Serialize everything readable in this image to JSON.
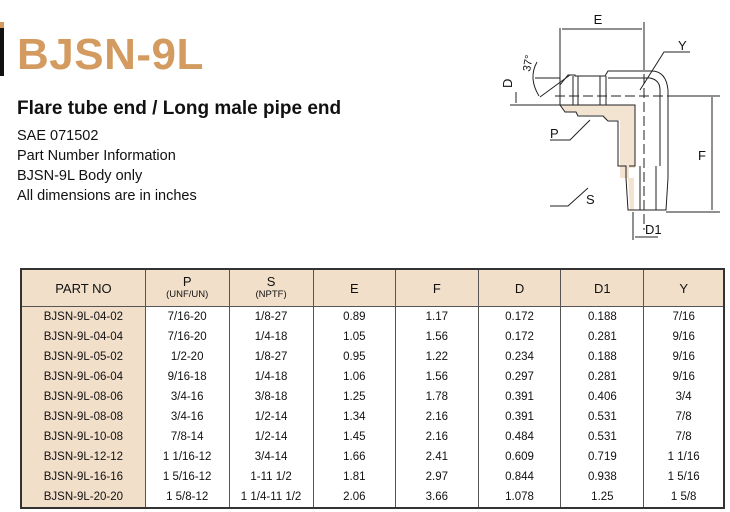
{
  "header": {
    "title": "BJSN-9L",
    "subtitle": "Flare tube end / Long male pipe end",
    "info": [
      "SAE 071502",
      "Part Number Information",
      "BJSN-9L Body only",
      "All dimensions are in inches"
    ]
  },
  "diagram": {
    "labels": {
      "E": "E",
      "Y": "Y",
      "angle": "37°",
      "D": "D",
      "P": "P",
      "F": "F",
      "S": "S",
      "D1": "D1"
    }
  },
  "colors": {
    "title": "#d39b5f",
    "table_header": "#f2dfca",
    "body_fill": "#f3e3d1"
  },
  "table": {
    "headers": [
      {
        "label": "PART NO",
        "sub": ""
      },
      {
        "label": "P",
        "sub": "(UNF/UN)"
      },
      {
        "label": "S",
        "sub": "(NPTF)"
      },
      {
        "label": "E",
        "sub": ""
      },
      {
        "label": "F",
        "sub": ""
      },
      {
        "label": "D",
        "sub": ""
      },
      {
        "label": "D1",
        "sub": ""
      },
      {
        "label": "Y",
        "sub": ""
      }
    ],
    "rows": [
      [
        "BJSN-9L-04-02",
        "7/16-20",
        "1/8-27",
        "0.89",
        "1.17",
        "0.172",
        "0.188",
        "7/16"
      ],
      [
        "BJSN-9L-04-04",
        "7/16-20",
        "1/4-18",
        "1.05",
        "1.56",
        "0.172",
        "0.281",
        "9/16"
      ],
      [
        "BJSN-9L-05-02",
        "1/2-20",
        "1/8-27",
        "0.95",
        "1.22",
        "0.234",
        "0.188",
        "9/16"
      ],
      [
        "BJSN-9L-06-04",
        "9/16-18",
        "1/4-18",
        "1.06",
        "1.56",
        "0.297",
        "0.281",
        "9/16"
      ],
      [
        "BJSN-9L-08-06",
        "3/4-16",
        "3/8-18",
        "1.25",
        "1.78",
        "0.391",
        "0.406",
        "3/4"
      ],
      [
        "BJSN-9L-08-08",
        "3/4-16",
        "1/2-14",
        "1.34",
        "2.16",
        "0.391",
        "0.531",
        "7/8"
      ],
      [
        "BJSN-9L-10-08",
        "7/8-14",
        "1/2-14",
        "1.45",
        "2.16",
        "0.484",
        "0.531",
        "7/8"
      ],
      [
        "BJSN-9L-12-12",
        "1 1/16-12",
        "3/4-14",
        "1.66",
        "2.41",
        "0.609",
        "0.719",
        "1 1/16"
      ],
      [
        "BJSN-9L-16-16",
        "1 5/16-12",
        "1-11 1/2",
        "1.81",
        "2.97",
        "0.844",
        "0.938",
        "1 5/16"
      ],
      [
        "BJSN-9L-20-20",
        "1 5/8-12",
        "1 1/4-11 1/2",
        "2.06",
        "3.66",
        "1.078",
        "1.25",
        "1 5/8"
      ]
    ]
  }
}
